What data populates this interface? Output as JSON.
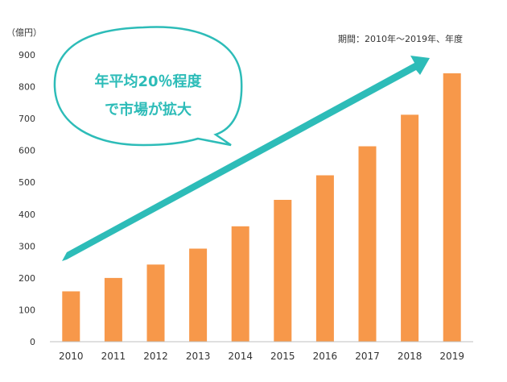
{
  "chart_data": {
    "type": "bar",
    "unit_label": "（億円）",
    "period_note": "期間：2010年～2019年、年度",
    "categories": [
      "2010",
      "2011",
      "2012",
      "2013",
      "2014",
      "2015",
      "2016",
      "2017",
      "2018",
      "2019"
    ],
    "values": [
      158,
      200,
      242,
      292,
      362,
      445,
      522,
      613,
      712,
      842
    ],
    "ylim": [
      0,
      900
    ],
    "yticks": [
      0,
      100,
      200,
      300,
      400,
      500,
      600,
      700,
      800,
      900
    ],
    "grid": false,
    "bar_color": "#F7984A",
    "arrow_color": "#2DBCB8",
    "callout": {
      "line1": "年平均20％程度",
      "line2": "で市場が拡大",
      "text_color": "#2DBCB8",
      "border_color": "#2DBCB8"
    }
  }
}
